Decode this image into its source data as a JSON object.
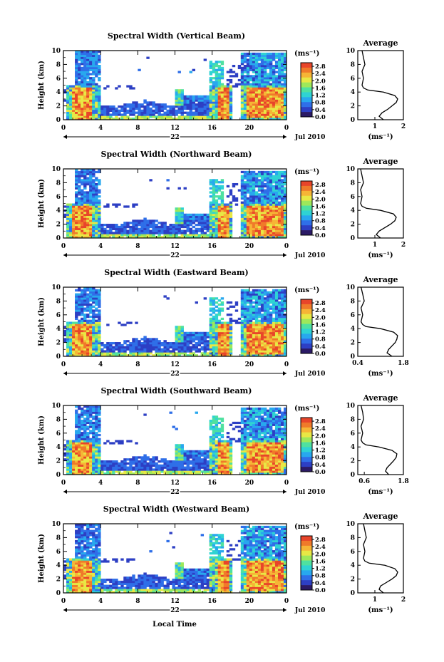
{
  "figure": {
    "x_axis_label": "Local Time",
    "y_axis_label": "Height (km)",
    "date_label": "Jul 2010",
    "day_label": "22",
    "unit_label": "(ms⁻¹)",
    "avg_title": "Average",
    "avg_xlabel": "(ms⁻¹)"
  },
  "colors": {
    "scale": [
      "#2b1a66",
      "#2d3fc4",
      "#2f6fe8",
      "#28a8ee",
      "#2fd3d3",
      "#4fe1a0",
      "#9ee85a",
      "#e8e845",
      "#f6b536",
      "#f07a2a",
      "#e8452a"
    ]
  },
  "chart_data": [
    {
      "type": "heatmap",
      "title": "Spectral Width (Vertical Beam)",
      "x_ticks": [
        "0",
        "4",
        "8",
        "12",
        "16",
        "20",
        "0"
      ],
      "x_range_hours": [
        0,
        24
      ],
      "y_ticks": [
        "0",
        "2",
        "4",
        "6",
        "8",
        "10"
      ],
      "ylim_km": [
        0,
        10
      ],
      "colorbar_ticks": [
        "0.0",
        "0.4",
        "0.8",
        "1.2",
        "1.6",
        "2.0",
        "2.4",
        "2.8"
      ],
      "colorbar_range": [
        0,
        3.0
      ],
      "average_profile": {
        "x_ticks": [
          "1",
          "2"
        ],
        "xlim": [
          0.4,
          2.0
        ],
        "height_km": [
          0,
          0.5,
          1,
          1.5,
          2,
          2.5,
          3,
          3.5,
          4,
          4.3,
          4.6,
          5,
          6,
          7,
          8,
          9,
          10
        ],
        "value": [
          1.3,
          1.15,
          1.25,
          1.45,
          1.6,
          1.75,
          1.8,
          1.7,
          1.3,
          0.75,
          0.6,
          0.55,
          0.6,
          0.55,
          0.65,
          0.6,
          0.55
        ]
      }
    },
    {
      "type": "heatmap",
      "title": "Spectral Width (Northward Beam)",
      "x_ticks": [
        "0",
        "4",
        "8",
        "12",
        "16",
        "20",
        "0"
      ],
      "x_range_hours": [
        0,
        24
      ],
      "y_ticks": [
        "0",
        "2",
        "4",
        "6",
        "8",
        "10"
      ],
      "ylim_km": [
        0,
        10
      ],
      "colorbar_ticks": [
        "0.0",
        "0.4",
        "0.8",
        "1.2",
        "1.6",
        "2.0",
        "2.4",
        "2.8"
      ],
      "colorbar_range": [
        0,
        3.0
      ],
      "average_profile": {
        "x_ticks": [
          "1",
          "2"
        ],
        "xlim": [
          0.4,
          2.0
        ],
        "height_km": [
          0,
          0.5,
          1,
          1.5,
          2,
          2.5,
          3,
          3.5,
          4,
          4.3,
          4.6,
          5,
          6,
          7,
          8,
          9,
          10
        ],
        "value": [
          1.2,
          1.05,
          1.15,
          1.35,
          1.55,
          1.7,
          1.75,
          1.65,
          1.2,
          0.7,
          0.55,
          0.5,
          0.55,
          0.5,
          0.6,
          0.55,
          0.5
        ]
      }
    },
    {
      "type": "heatmap",
      "title": "Spectral Width (Eastward Beam)",
      "x_ticks": [
        "0",
        "4",
        "8",
        "12",
        "16",
        "20",
        "0"
      ],
      "x_range_hours": [
        0,
        24
      ],
      "y_ticks": [
        "0",
        "2",
        "4",
        "6",
        "8",
        "10"
      ],
      "ylim_km": [
        0,
        10
      ],
      "colorbar_ticks": [
        "0.0",
        "0.4",
        "0.8",
        "1.2",
        "1.6",
        "2.0",
        "2.4",
        "2.8"
      ],
      "colorbar_range": [
        0,
        3.0
      ],
      "average_profile": {
        "x_ticks": [
          "0.4",
          "1.8"
        ],
        "xlim": [
          0.4,
          1.8
        ],
        "height_km": [
          0,
          0.5,
          1,
          1.5,
          2,
          2.5,
          3,
          3.5,
          4,
          4.3,
          4.6,
          5,
          6,
          7,
          8,
          9,
          10
        ],
        "value": [
          1.45,
          1.3,
          1.35,
          1.45,
          1.55,
          1.6,
          1.62,
          1.5,
          1.1,
          0.65,
          0.55,
          0.5,
          0.55,
          0.5,
          0.6,
          0.55,
          0.5
        ]
      }
    },
    {
      "type": "heatmap",
      "title": "Spectral Width (Southward Beam)",
      "x_ticks": [
        "0",
        "4",
        "8",
        "12",
        "16",
        "20",
        "0"
      ],
      "x_range_hours": [
        0,
        24
      ],
      "y_ticks": [
        "0",
        "2",
        "4",
        "6",
        "8",
        "10"
      ],
      "ylim_km": [
        0,
        10
      ],
      "colorbar_ticks": [
        "0.0",
        "0.4",
        "0.8",
        "1.2",
        "1.6",
        "2.0",
        "2.4",
        "2.8"
      ],
      "colorbar_range": [
        0,
        3.0
      ],
      "average_profile": {
        "x_ticks": [
          "0.6",
          "1.8"
        ],
        "xlim": [
          0.4,
          1.8
        ],
        "height_km": [
          0,
          0.5,
          1,
          1.5,
          2,
          2.5,
          3,
          3.5,
          4,
          4.3,
          4.6,
          5,
          6,
          7,
          8,
          9,
          10
        ],
        "value": [
          1.35,
          1.25,
          1.3,
          1.4,
          1.5,
          1.58,
          1.6,
          1.45,
          1.05,
          0.65,
          0.55,
          0.5,
          0.55,
          0.5,
          0.58,
          0.55,
          0.5
        ]
      }
    },
    {
      "type": "heatmap",
      "title": "Spectral Width (Westward Beam)",
      "x_ticks": [
        "0",
        "4",
        "8",
        "12",
        "16",
        "20",
        "0"
      ],
      "x_range_hours": [
        0,
        24
      ],
      "y_ticks": [
        "0",
        "2",
        "4",
        "6",
        "8",
        "10"
      ],
      "ylim_km": [
        0,
        10
      ],
      "colorbar_ticks": [
        "0.0",
        "0.4",
        "0.8",
        "1.2",
        "1.6",
        "2.0",
        "2.4",
        "2.8"
      ],
      "colorbar_range": [
        0,
        3.0
      ],
      "average_profile": {
        "x_ticks": [
          "1",
          "2"
        ],
        "xlim": [
          0.4,
          2.0
        ],
        "height_km": [
          0,
          0.5,
          1,
          1.5,
          2,
          2.5,
          3,
          3.5,
          4,
          4.3,
          4.6,
          5,
          6,
          7,
          8,
          9,
          10
        ],
        "value": [
          1.3,
          1.15,
          1.2,
          1.4,
          1.6,
          1.75,
          1.8,
          1.7,
          1.35,
          0.8,
          0.65,
          0.6,
          0.65,
          0.6,
          0.7,
          0.65,
          0.6
        ]
      }
    }
  ]
}
